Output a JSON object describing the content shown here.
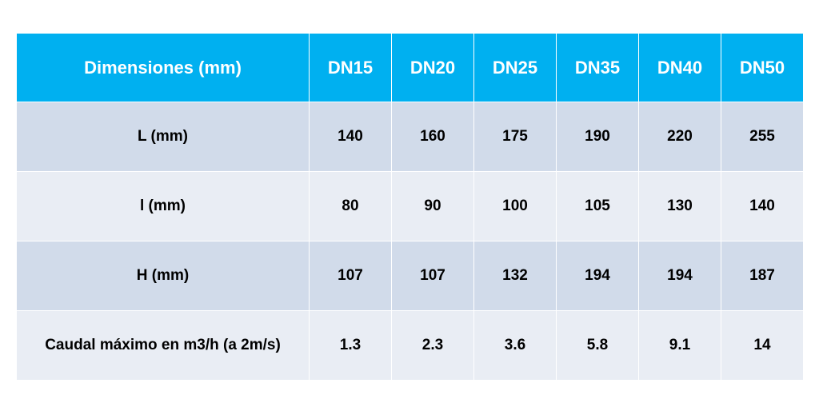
{
  "table": {
    "header": {
      "label": "Dimensiones (mm)",
      "columns": [
        "DN15",
        "DN20",
        "DN25",
        "DN35",
        "DN40",
        "DN50"
      ]
    },
    "rows": [
      {
        "label": "L (mm)",
        "values": [
          "140",
          "160",
          "175",
          "190",
          "220",
          "255"
        ]
      },
      {
        "label": "l (mm)",
        "values": [
          "80",
          "90",
          "100",
          "105",
          "130",
          "140"
        ]
      },
      {
        "label": "H (mm)",
        "values": [
          "107",
          "107",
          "132",
          "194",
          "194",
          "187"
        ]
      },
      {
        "label": "Caudal máximo en m3/h (a 2m/s)",
        "values": [
          "1.3",
          "2.3",
          "3.6",
          "5.8",
          "9.1",
          "14"
        ]
      }
    ]
  },
  "colors": {
    "header_bg": "#00b0f0",
    "row_dark": "#d1dbea",
    "row_light": "#e9edf4"
  }
}
